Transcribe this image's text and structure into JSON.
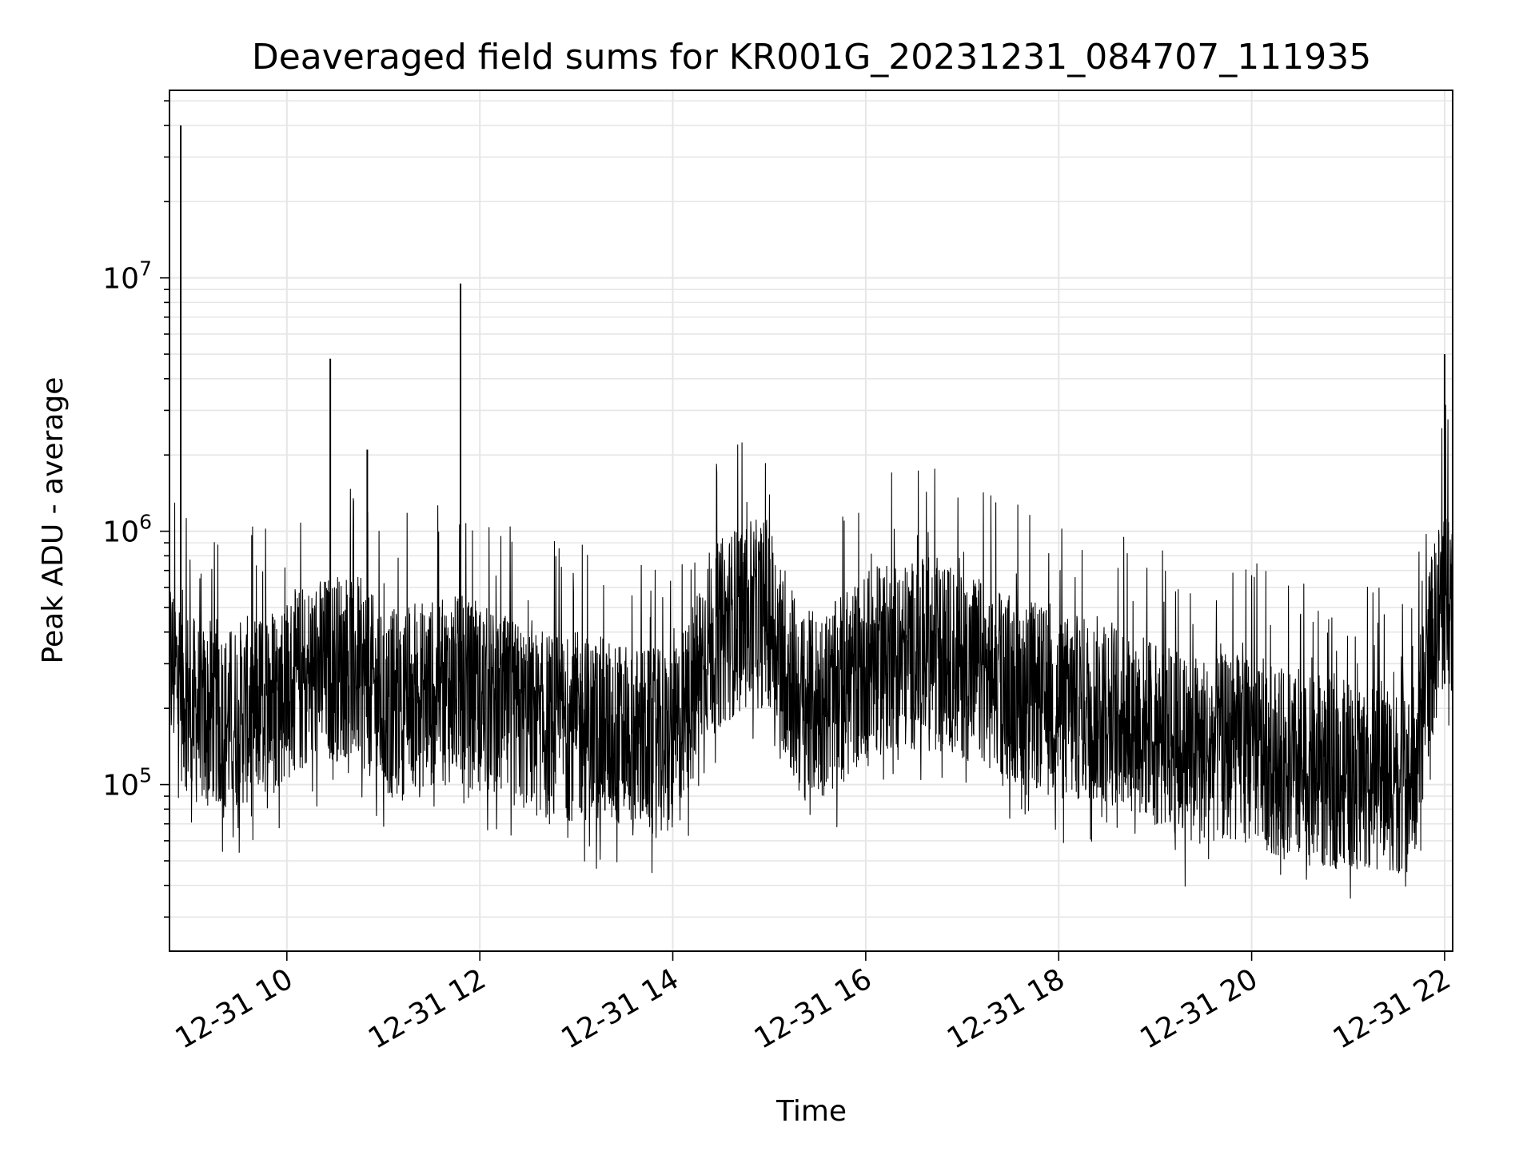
{
  "chart_data": {
    "type": "line",
    "title": "Deaveraged field sums for KR001G_20231231_084707_111935",
    "xlabel": "Time",
    "ylabel": "Peak ADU - average",
    "yscale": "log",
    "ylim": [
      22000,
      55000000
    ],
    "xlim": [
      "2023-12-31 08:47",
      "2023-12-31 22:05"
    ],
    "grid": true,
    "x_ticks": [
      {
        "value": "2023-12-31 10:00",
        "label": "12-31 10"
      },
      {
        "value": "2023-12-31 12:00",
        "label": "12-31 12"
      },
      {
        "value": "2023-12-31 14:00",
        "label": "12-31 14"
      },
      {
        "value": "2023-12-31 16:00",
        "label": "12-31 16"
      },
      {
        "value": "2023-12-31 18:00",
        "label": "12-31 18"
      },
      {
        "value": "2023-12-31 20:00",
        "label": "12-31 20"
      },
      {
        "value": "2023-12-31 22:00",
        "label": "12-31 22"
      }
    ],
    "y_ticks": [
      {
        "value": 100000,
        "base": "10",
        "exp": "5"
      },
      {
        "value": 1000000,
        "base": "10",
        "exp": "6"
      },
      {
        "value": 10000000,
        "base": "10",
        "exp": "7"
      }
    ],
    "line_color": "#000000",
    "series": [
      {
        "x": [
          "2023-12-31 08:47",
          "2023-12-31 08:55",
          "2023-12-31 09:00",
          "2023-12-31 09:05",
          "2023-12-31 09:10",
          "2023-12-31 09:15",
          "2023-12-31 09:20",
          "2023-12-31 09:30",
          "2023-12-31 09:40",
          "2023-12-31 09:50",
          "2023-12-31 10:00",
          "2023-12-31 10:10",
          "2023-12-31 10:20",
          "2023-12-31 10:30",
          "2023-12-31 10:40",
          "2023-12-31 10:50",
          "2023-12-31 11:00",
          "2023-12-31 11:15",
          "2023-12-31 11:30",
          "2023-12-31 11:45",
          "2023-12-31 12:00",
          "2023-12-31 12:20",
          "2023-12-31 12:40",
          "2023-12-31 13:00",
          "2023-12-31 13:20",
          "2023-12-31 13:40",
          "2023-12-31 14:00",
          "2023-12-31 14:10",
          "2023-12-31 14:20",
          "2023-12-31 14:40",
          "2023-12-31 15:00",
          "2023-12-31 15:10",
          "2023-12-31 15:20",
          "2023-12-31 15:40",
          "2023-12-31 16:00",
          "2023-12-31 16:20",
          "2023-12-31 16:40",
          "2023-12-31 17:00",
          "2023-12-31 17:20",
          "2023-12-31 17:40",
          "2023-12-31 18:00",
          "2023-12-31 18:20",
          "2023-12-31 18:40",
          "2023-12-31 19:00",
          "2023-12-31 19:20",
          "2023-12-31 19:40",
          "2023-12-31 20:00",
          "2023-12-31 20:20",
          "2023-12-31 20:40",
          "2023-12-31 21:00",
          "2023-12-31 21:20",
          "2023-12-31 21:40",
          "2023-12-31 21:50",
          "2023-12-31 22:00",
          "2023-12-31 22:05"
        ],
        "y": [
          300000,
          250000,
          200000,
          190000,
          180000,
          200000,
          170000,
          190000,
          200000,
          220000,
          240000,
          260000,
          280000,
          290000,
          300000,
          260000,
          200000,
          220000,
          230000,
          240000,
          220000,
          190000,
          170000,
          170000,
          160000,
          150000,
          140000,
          200000,
          350000,
          450000,
          480000,
          300000,
          200000,
          220000,
          300000,
          320000,
          330000,
          300000,
          260000,
          230000,
          200000,
          200000,
          190000,
          160000,
          140000,
          140000,
          140000,
          120000,
          110000,
          110000,
          110000,
          100000,
          300000,
          600000,
          550000
        ]
      }
    ],
    "spikes": [
      {
        "x": "2023-12-31 08:54",
        "y": 40000000
      },
      {
        "x": "2023-12-31 10:27",
        "y": 4800000
      },
      {
        "x": "2023-12-31 10:50",
        "y": 2100000
      },
      {
        "x": "2023-12-31 11:48",
        "y": 9500000
      },
      {
        "x": "2023-12-31 22:00",
        "y": 5000000
      }
    ]
  }
}
